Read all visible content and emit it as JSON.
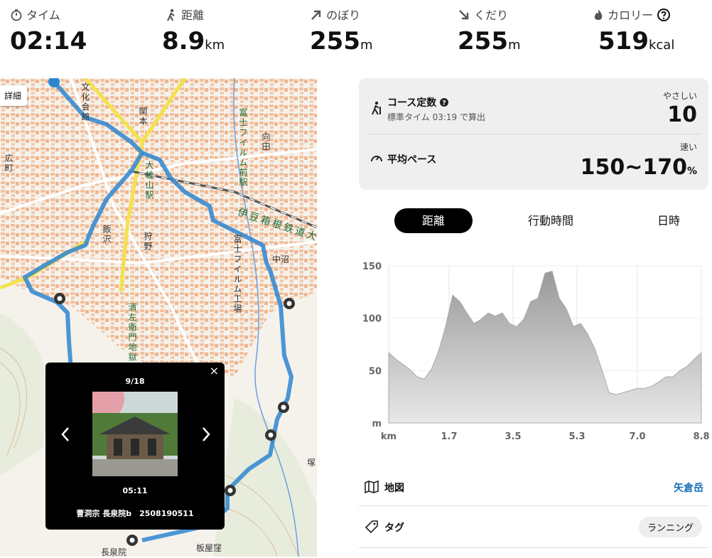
{
  "stats": [
    {
      "label": "タイム",
      "value": "02:14"
    },
    {
      "label": "距離",
      "value": "8.9",
      "unit": "km"
    },
    {
      "label": "のぼり",
      "value": "255",
      "unit": "m"
    },
    {
      "label": "くだり",
      "value": "255",
      "unit": "m"
    },
    {
      "label": "カロリー",
      "value": "519",
      "unit": "kcal"
    }
  ],
  "map": {
    "detail_button": "詳細",
    "labels": [
      "文化会館",
      "関本",
      "大雄山駅",
      "富士フイルム前駅",
      "伊豆箱根鉄道大",
      "向田",
      "飯沢",
      "狩野",
      "富士フイルム工場",
      "中沼",
      "清左衛門地獄",
      "広町",
      "長泉院",
      "板屋窪",
      "塚"
    ]
  },
  "photo_popup": {
    "counter": "9/18",
    "time": "05:11",
    "caption": "曹洞宗 長泉院b　2508190511"
  },
  "course": {
    "title": "コース定数",
    "subtitle": "標準タイム 03:19 で算出",
    "difficulty_label": "やさしい",
    "difficulty_value": "10",
    "pace_title": "平均ペース",
    "pace_label": "速い",
    "pace_value": "150~170",
    "pace_unit": "%"
  },
  "tabs": [
    "距離",
    "行動時間",
    "日時"
  ],
  "chart_data": {
    "type": "area",
    "color": "#a9a9a9",
    "grid": true,
    "x": [
      0,
      0.2,
      0.4,
      0.6,
      0.8,
      1.0,
      1.2,
      1.4,
      1.6,
      1.8,
      2.0,
      2.2,
      2.4,
      2.6,
      2.8,
      3.0,
      3.2,
      3.4,
      3.6,
      3.8,
      4.0,
      4.2,
      4.4,
      4.6,
      4.8,
      5.0,
      5.2,
      5.4,
      5.6,
      5.8,
      6.0,
      6.2,
      6.4,
      6.6,
      6.8,
      7.0,
      7.2,
      7.4,
      7.6,
      7.8,
      8.0,
      8.2,
      8.4,
      8.6,
      8.8
    ],
    "values": [
      67,
      61,
      56,
      51,
      44,
      42,
      51,
      68,
      92,
      122,
      116,
      105,
      95,
      99,
      105,
      102,
      105,
      95,
      92,
      99,
      116,
      119,
      143,
      145,
      119,
      109,
      92,
      95,
      85,
      71,
      51,
      29,
      27,
      29,
      31,
      33,
      33,
      35,
      39,
      44,
      44,
      50,
      54,
      61,
      67
    ],
    "xlim": [
      0,
      8.8
    ],
    "ylim": [
      0,
      150
    ],
    "xticks": [
      {
        "value": 0,
        "label": "km"
      },
      1.7,
      3.5,
      5.3,
      {
        "value": 7,
        "label": "7.0"
      },
      8.8
    ],
    "yticks": [
      {
        "value": 0,
        "label": "m"
      },
      50,
      100,
      150
    ]
  },
  "footer": {
    "map_label": "地図",
    "map_value": "矢倉岳",
    "tag_label": "タグ",
    "tag_value": "ランニング"
  }
}
